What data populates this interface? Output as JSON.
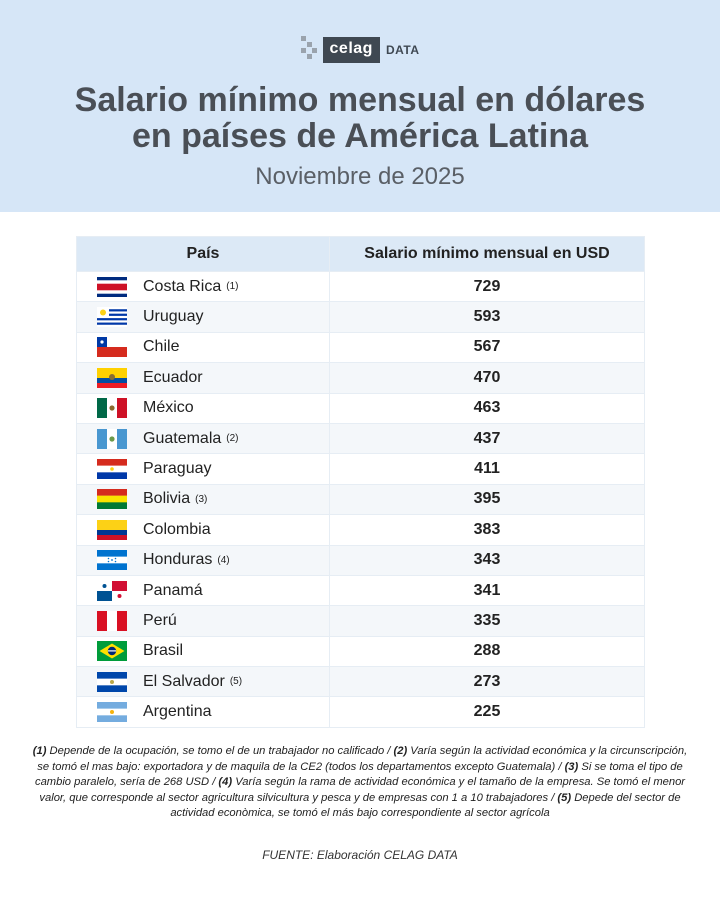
{
  "brand": {
    "name": "celag",
    "suffix": "DATA"
  },
  "title_line1": "Salario mínimo mensual en dólares",
  "title_line2": "en países de América Latina",
  "subtitle": "Noviembre de 2025",
  "table": {
    "headers": [
      "País",
      "Salario mínimo mensual en USD"
    ],
    "rows": [
      {
        "country": "Costa Rica",
        "note": "(1)",
        "value": "729",
        "flag": "costa-rica"
      },
      {
        "country": "Uruguay",
        "note": "",
        "value": "593",
        "flag": "uruguay"
      },
      {
        "country": "Chile",
        "note": "",
        "value": "567",
        "flag": "chile"
      },
      {
        "country": "Ecuador",
        "note": "",
        "value": "470",
        "flag": "ecuador"
      },
      {
        "country": "México",
        "note": "",
        "value": "463",
        "flag": "mexico"
      },
      {
        "country": "Guatemala",
        "note": "(2)",
        "value": "437",
        "flag": "guatemala"
      },
      {
        "country": "Paraguay",
        "note": "",
        "value": "411",
        "flag": "paraguay"
      },
      {
        "country": "Bolivia",
        "note": "(3)",
        "value": "395",
        "flag": "bolivia"
      },
      {
        "country": "Colombia",
        "note": "",
        "value": "383",
        "flag": "colombia"
      },
      {
        "country": "Honduras",
        "note": "(4)",
        "value": "343",
        "flag": "honduras"
      },
      {
        "country": "Panamá",
        "note": "",
        "value": "341",
        "flag": "panama"
      },
      {
        "country": "Perú",
        "note": "",
        "value": "335",
        "flag": "peru"
      },
      {
        "country": "Brasil",
        "note": "",
        "value": "288",
        "flag": "brasil"
      },
      {
        "country": "El Salvador",
        "note": "(5)",
        "value": "273",
        "flag": "el-salvador"
      },
      {
        "country": "Argentina",
        "note": "",
        "value": "225",
        "flag": "argentina"
      }
    ]
  },
  "footnotes": [
    {
      "mark": "(1)",
      "text": " Depende de la ocupación, se tomo el de un trabajador no calificado / "
    },
    {
      "mark": "(2)",
      "text": " Varía según la actividad económica y la circunscripción, se tomó el mas bajo: exportadora y de maquila de la CE2 (todos los departamentos excepto Guatemala) / "
    },
    {
      "mark": "(3)",
      "text": " Si se toma el tipo de cambio paralelo, sería de 268 USD / "
    },
    {
      "mark": "(4)",
      "text": " Varía según la rama de actividad económica y el tamaño de la empresa. Se tomó el menor valor, que corresponde al sector agricultura silvicultura y pesca y de empresas con 1 a 10 trabajadores / "
    },
    {
      "mark": "(5)",
      "text": " Depede del sector de actividad econòmica, se tomó el más bajo correspondiente al sector agrícola"
    }
  ],
  "source": "FUENTE: Elaboración CELAG DATA",
  "colors": {
    "header_bg": "#d6e6f7",
    "title": "#4a4f56",
    "table_header_bg": "#dce9f6",
    "logo": "#3f4852"
  }
}
